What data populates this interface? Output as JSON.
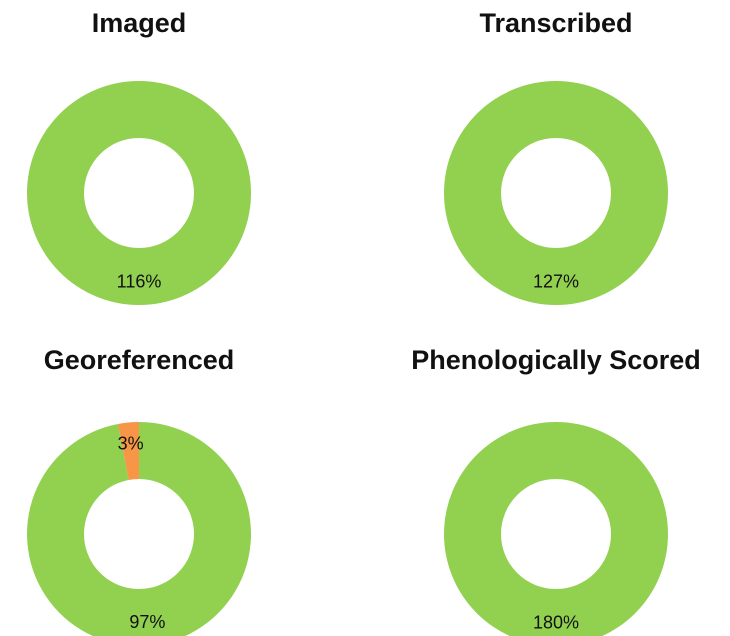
{
  "chart_data": [
    {
      "type": "pie",
      "title": "Imaged",
      "values": [
        116
      ],
      "value_labels": [
        "116%"
      ],
      "colors": [
        "#92d050"
      ]
    },
    {
      "type": "pie",
      "title": "Transcribed",
      "values": [
        127
      ],
      "value_labels": [
        "127%"
      ],
      "colors": [
        "#92d050"
      ]
    },
    {
      "type": "pie",
      "title": "Georeferenced",
      "values": [
        97,
        3
      ],
      "value_labels": [
        "97%",
        "3%"
      ],
      "colors": [
        "#92d050",
        "#f79646"
      ]
    },
    {
      "type": "pie",
      "title": "Phenologically Scored",
      "values": [
        180
      ],
      "value_labels": [
        "180%"
      ],
      "colors": [
        "#92d050"
      ]
    }
  ]
}
